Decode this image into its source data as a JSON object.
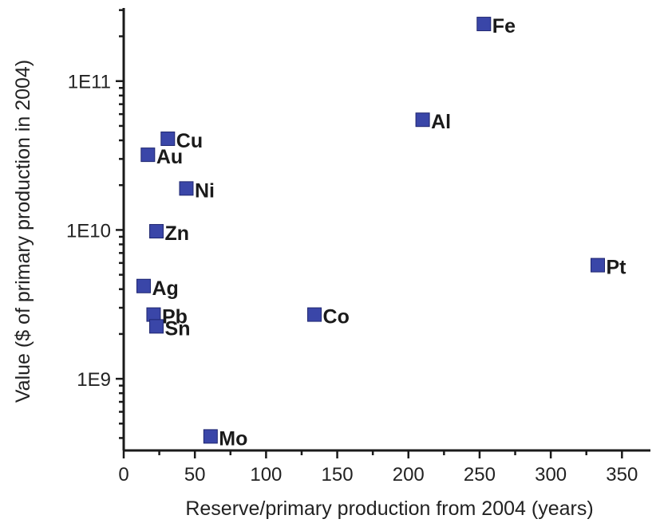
{
  "chart_data": {
    "type": "scatter",
    "xlabel": "Reserve/primary production from 2004 (years)",
    "ylabel": "Value ($ of primary production in 2004)",
    "xlim": [
      0,
      370
    ],
    "ylim": [
      330000000,
      310000000000
    ],
    "y_scale": "log",
    "x_ticks": [
      0,
      50,
      100,
      150,
      200,
      250,
      300,
      350
    ],
    "y_ticks": [
      {
        "value": 1000000000,
        "label": "1E9"
      },
      {
        "value": 10000000000,
        "label": "1E10"
      },
      {
        "value": 100000000000,
        "label": "1E11"
      }
    ],
    "grid": false,
    "marker_color": "#3a46a8",
    "points": [
      {
        "label": "Fe",
        "x": 253,
        "y": 242000000000
      },
      {
        "label": "Al",
        "x": 210,
        "y": 55000000000
      },
      {
        "label": "Cu",
        "x": 31,
        "y": 41000000000
      },
      {
        "label": "Au",
        "x": 17,
        "y": 32000000000
      },
      {
        "label": "Ni",
        "x": 44,
        "y": 19000000000
      },
      {
        "label": "Zn",
        "x": 23,
        "y": 9800000000
      },
      {
        "label": "Pt",
        "x": 333,
        "y": 5800000000
      },
      {
        "label": "Ag",
        "x": 14,
        "y": 4200000000
      },
      {
        "label": "Pb",
        "x": 21,
        "y": 2700000000
      },
      {
        "label": "Co",
        "x": 134,
        "y": 2700000000
      },
      {
        "label": "Sn",
        "x": 23,
        "y": 2250000000
      },
      {
        "label": "Mo",
        "x": 61,
        "y": 410000000
      }
    ]
  }
}
